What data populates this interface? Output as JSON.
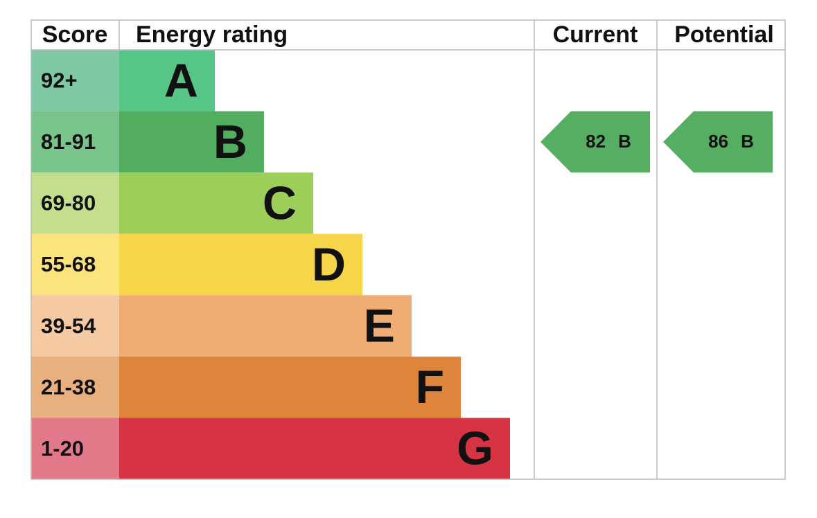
{
  "header": {
    "score": "Score",
    "rating": "Energy rating",
    "current": "Current",
    "potential": "Potential"
  },
  "bands": [
    {
      "score": "92+",
      "letter": "A",
      "score_color": "#7ec9a3",
      "color": "#57c585"
    },
    {
      "score": "81-91",
      "letter": "B",
      "score_color": "#79c48b",
      "color": "#52ad5f"
    },
    {
      "score": "69-80",
      "letter": "C",
      "score_color": "#c3df8e",
      "color": "#9dce5a"
    },
    {
      "score": "55-68",
      "letter": "D",
      "score_color": "#fbe47b",
      "color": "#f6d548"
    },
    {
      "score": "39-54",
      "letter": "E",
      "score_color": "#f5c9a2",
      "color": "#efad73"
    },
    {
      "score": "21-38",
      "letter": "F",
      "score_color": "#e9b07f",
      "color": "#df843b"
    },
    {
      "score": "1-20",
      "letter": "G",
      "score_color": "#e27989",
      "color": "#d63444"
    }
  ],
  "current": {
    "score": "82",
    "band": "B",
    "color": "#55ae62"
  },
  "potential": {
    "score": "86",
    "band": "B",
    "color": "#55ae62"
  }
}
